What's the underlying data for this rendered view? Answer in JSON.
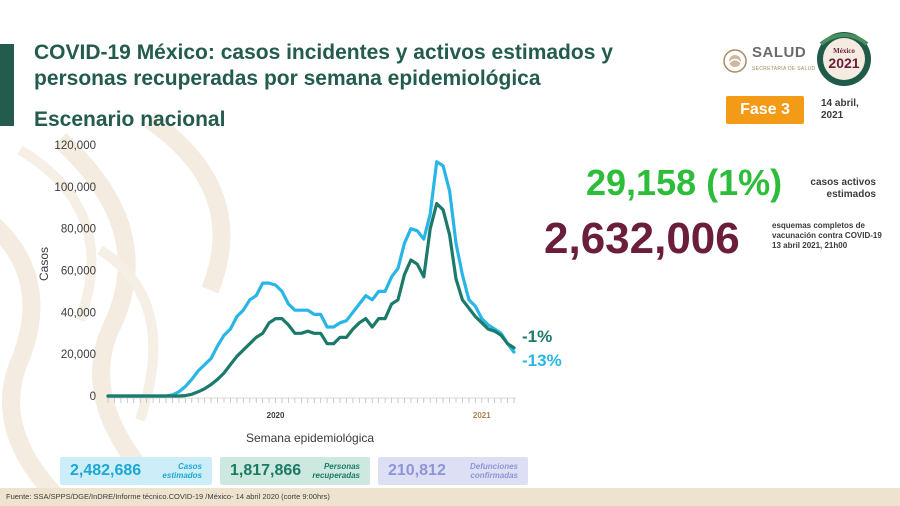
{
  "header": {
    "title": "COVID-19 México: casos incidentes y activos estimados y personas recuperadas por semana epidemiológica",
    "subtitle": "Escenario nacional",
    "salud_label": "SALUD",
    "salud_small": "SECRETARÍA DE SALUD",
    "logo_year": "2021",
    "logo_text": "México",
    "phase": "Fase 3",
    "date": "14 abril,\n2021"
  },
  "chart_data": {
    "type": "line",
    "ylabel": "Casos",
    "xlabel": "Semana epidemiológica",
    "ylim": [
      0,
      120000
    ],
    "yticks": [
      0,
      20000,
      40000,
      60000,
      80000,
      100000,
      120000
    ],
    "ytick_labels": [
      "0",
      "20,000",
      "40,000",
      "60,000",
      "80,000",
      "100,000",
      "120,000"
    ],
    "x_group_labels": [
      {
        "label": "2020",
        "week_index": 26,
        "color": "#3b3b3b"
      },
      {
        "label": "2021",
        "week_index": 58,
        "color": "#a8854e"
      }
    ],
    "week_count": 64,
    "series": [
      {
        "name": "Casos incidentes estimados",
        "color": "#29b6e6",
        "end_label": "-13%",
        "values": [
          0,
          0,
          0,
          0,
          0,
          0,
          0,
          0,
          0,
          0,
          500,
          2000,
          4500,
          8000,
          12000,
          15000,
          18000,
          24000,
          29000,
          32000,
          38000,
          41000,
          46000,
          48000,
          54000,
          54000,
          53000,
          50000,
          44000,
          41000,
          41000,
          41000,
          39000,
          39000,
          33000,
          33000,
          35000,
          36000,
          40000,
          44000,
          48000,
          46000,
          50000,
          50000,
          57000,
          61000,
          73000,
          80000,
          79000,
          75000,
          87000,
          112000,
          110000,
          98000,
          73000,
          58000,
          46000,
          43000,
          37000,
          34000,
          32000,
          30000,
          25000,
          21000
        ]
      },
      {
        "name": "Casos activos estimados",
        "color": "#1b7a6a",
        "end_label": "-1%",
        "values": [
          0,
          0,
          0,
          0,
          0,
          0,
          0,
          0,
          0,
          0,
          0,
          0,
          200,
          800,
          2000,
          3500,
          5500,
          8000,
          11000,
          15000,
          19000,
          22000,
          25000,
          28000,
          30000,
          35000,
          37000,
          37000,
          34000,
          30000,
          30000,
          31000,
          30000,
          30000,
          25000,
          25000,
          28000,
          28000,
          32000,
          35000,
          37000,
          33000,
          37000,
          37000,
          44000,
          46000,
          58000,
          65000,
          63000,
          57000,
          80000,
          92000,
          89000,
          77000,
          56000,
          46000,
          42000,
          38000,
          35000,
          32000,
          31000,
          29000,
          25000,
          23000
        ]
      }
    ],
    "grid": false,
    "legend": "none"
  },
  "kpis": {
    "active": {
      "value": "29,158 (1%)",
      "label": "casos activos estimados"
    },
    "vaccines": {
      "value": "2,632,006",
      "label": "esquemas completos de vacunación contra COVID-19",
      "date": "13 abril 2021, 21h00"
    }
  },
  "summary": [
    {
      "value": "2,482,686",
      "label_1": "Casos",
      "label_2": "estimados"
    },
    {
      "value": "1,817,866",
      "label_1": "Personas",
      "label_2": "recuperadas"
    },
    {
      "value": "210,812",
      "label_1": "Defunciones",
      "label_2": "confirmadas"
    }
  ],
  "footer": {
    "source": "Fuente: SSA/SPPS/DGE/InDRE/Informe técnico.COVID-19 /México- 14 abril 2020 (corte 9:00hrs)"
  },
  "colors": {
    "brand_green": "#235b4e",
    "phase_orange": "#f39a16",
    "active_green": "#2ebd3a",
    "vaccine_maroon": "#6a1e3c"
  }
}
